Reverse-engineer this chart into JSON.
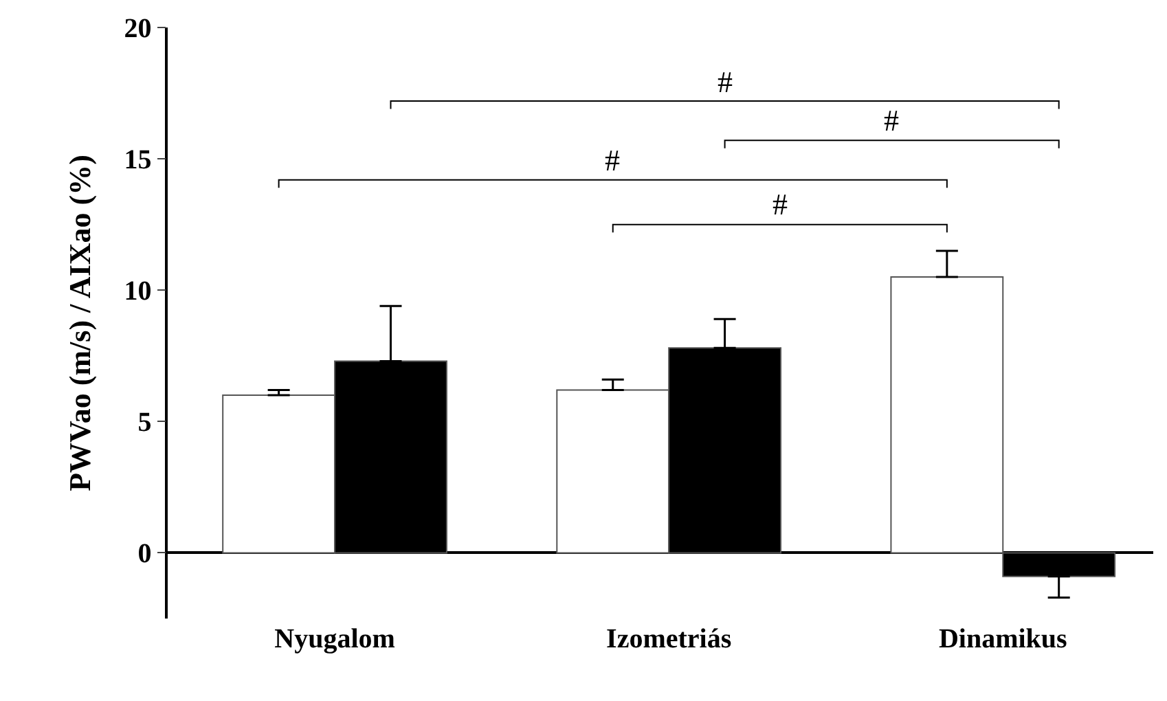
{
  "chart_data": {
    "type": "bar",
    "ylabel": "PWVao (m/s) / AIXao (%)",
    "categories": [
      "Nyugalom",
      "Izometriás",
      "Dinamikus"
    ],
    "series": [
      {
        "color": "#ffffff",
        "values": [
          6.0,
          6.2,
          10.5
        ],
        "errors": [
          [
            6.0,
            6.2
          ],
          [
            6.2,
            6.6
          ],
          [
            10.5,
            11.5
          ]
        ]
      },
      {
        "color": "#000000",
        "values": [
          7.3,
          7.8,
          -0.9
        ],
        "errors": [
          [
            7.3,
            9.4
          ],
          [
            7.8,
            8.9
          ],
          [
            -1.7,
            -0.9
          ]
        ]
      }
    ],
    "ylim": [
      -2.5,
      20
    ],
    "yticks": [
      0,
      5,
      10,
      15,
      20
    ],
    "annotations": [
      "#",
      "#",
      "#",
      "#"
    ]
  }
}
